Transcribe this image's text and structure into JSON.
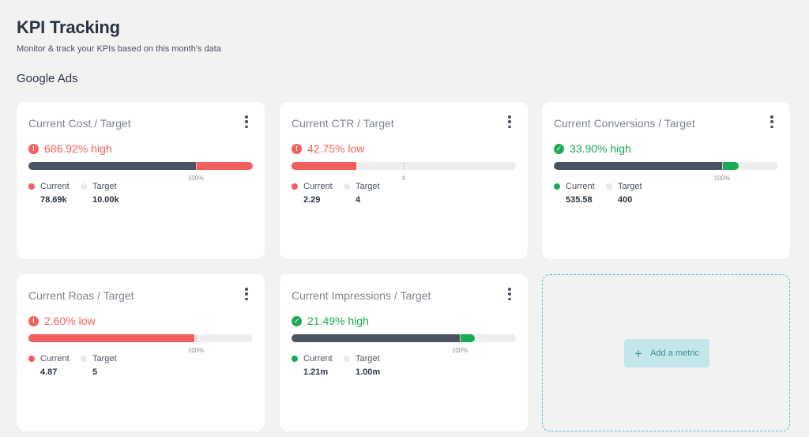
{
  "header": {
    "title": "KPI Tracking",
    "subtitle": "Monitor & track your KPIs based on this month's data",
    "section": "Google Ads"
  },
  "colors": {
    "accent_red": "#f25f5c",
    "accent_green": "#1aaa55",
    "bar_dark": "#4b5261",
    "add_border": "#5cc0cf"
  },
  "legend": {
    "current": "Current",
    "target": "Target"
  },
  "cards": [
    {
      "title": "Current Cost / Target",
      "status_text": "686.92% high",
      "status": "bad",
      "status_icon": "alert-icon",
      "current_fraction": 1.0,
      "target_fraction": 0.7468,
      "marker_label": "100%",
      "current_value": "78.69k",
      "target_value": "10.00k"
    },
    {
      "title": "Current CTR / Target",
      "status_text": "42.75% low",
      "status": "bad",
      "status_icon": "alert-icon",
      "current_fraction": 0.2875,
      "target_fraction": 0.5,
      "marker_label": "4",
      "current_value": "2.29",
      "target_value": "4"
    },
    {
      "title": "Current Conversions / Target",
      "status_text": "33.90% high",
      "status": "good",
      "status_icon": "check-icon",
      "current_fraction": 0.8235,
      "target_fraction": 0.75,
      "marker_label": "100%",
      "current_value": "535.58",
      "target_value": "400"
    },
    {
      "title": "Current Roas / Target",
      "status_text": "2.60% low",
      "status": "bad",
      "status_icon": "alert-icon",
      "current_fraction": 0.7394,
      "target_fraction": 0.7465,
      "marker_label": "100%",
      "current_value": "4.87",
      "target_value": "5"
    },
    {
      "title": "Current Impressions / Target",
      "status_text": "21.49% high",
      "status": "good",
      "status_icon": "check-icon",
      "current_fraction": 0.8169,
      "target_fraction": 0.75,
      "marker_label": "100%",
      "current_value": "1.21m",
      "target_value": "1.00m"
    }
  ],
  "add_metric": {
    "label": "Add a metric",
    "icon": "plus-icon"
  }
}
